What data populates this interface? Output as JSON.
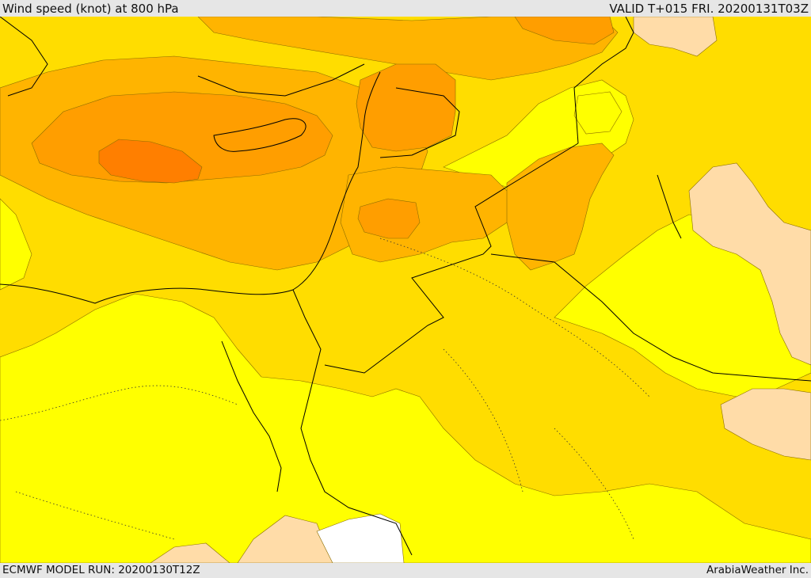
{
  "header": {
    "title": "Wind speed (knot) at 800 hPa",
    "valid": "VALID T+015 FRI. 20200131T03Z"
  },
  "footer": {
    "model_run": "ECMWF MODEL RUN: 20200130T12Z",
    "credit": "ArabiaWeather Inc."
  },
  "palette": {
    "very_light": "#ffdca8",
    "light": "#ffff00",
    "mid": "#ffdd00",
    "strong": "#ffb400",
    "stronger": "#ff9e00",
    "strongest": "#ff7f00",
    "land_border": "#000000",
    "no_data": "#ffffff"
  }
}
